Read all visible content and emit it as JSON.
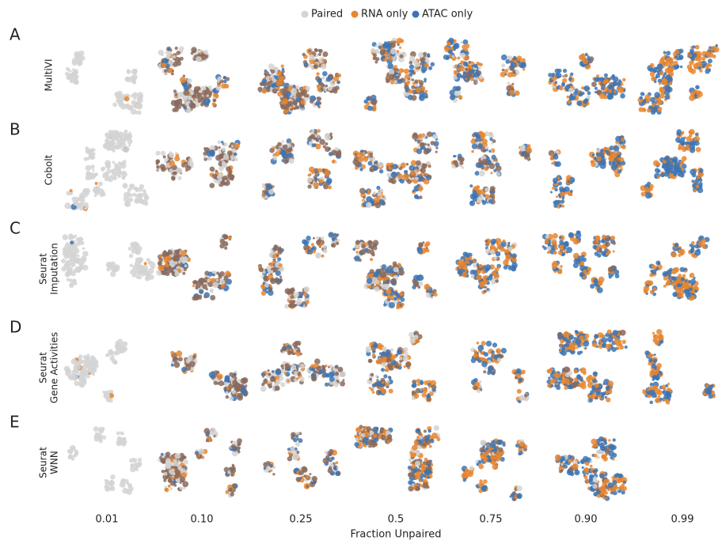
{
  "legend": [
    {
      "label": "Paired",
      "color": "#d4d4d4"
    },
    {
      "label": "RNA only",
      "color": "#e8862f"
    },
    {
      "label": "ATAC only",
      "color": "#3b74b5"
    }
  ],
  "rows": [
    {
      "letter": "A",
      "label": [
        "MultiVI"
      ]
    },
    {
      "letter": "B",
      "label": [
        "Cobolt"
      ]
    },
    {
      "letter": "C",
      "label": [
        "Seurat",
        "Imputation"
      ]
    },
    {
      "letter": "D",
      "label": [
        "Seurat",
        "Gene Activities"
      ]
    },
    {
      "letter": "E",
      "label": [
        "Seurat",
        "WNN"
      ]
    }
  ],
  "columns": [
    "0.01",
    "0.10",
    "0.25",
    "0.5",
    "0.75",
    "0.90",
    "0.99"
  ],
  "x_label": "Fraction Unpaired"
}
